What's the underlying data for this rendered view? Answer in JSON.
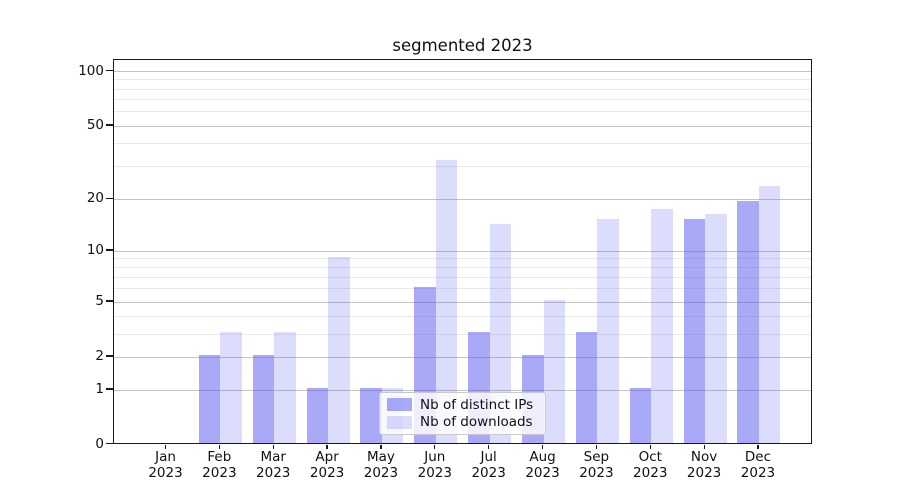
{
  "title": "segmented 2023",
  "legend": {
    "items": [
      {
        "label": "Nb of distinct IPs",
        "series": "distinct_ips"
      },
      {
        "label": "Nb of downloads",
        "series": "downloads"
      }
    ]
  },
  "colors": {
    "bar_distinct_ips": "rgba(99,99,240,0.55)",
    "bar_downloads": "rgba(99,99,240,0.225)",
    "grid_major": "#c4c4c4",
    "grid_minor": "#e9e9e9",
    "spine": "#1a1a1a",
    "text": "#111111"
  },
  "chart_data": {
    "type": "bar",
    "title": "segmented 2023",
    "categories": [
      "Jan 2023",
      "Feb 2023",
      "Mar 2023",
      "Apr 2023",
      "May 2023",
      "Jun 2023",
      "Jul 2023",
      "Aug 2023",
      "Sep 2023",
      "Oct 2023",
      "Nov 2023",
      "Dec 2023"
    ],
    "x_tick_months": [
      "Jan",
      "Feb",
      "Mar",
      "Apr",
      "May",
      "Jun",
      "Jul",
      "Aug",
      "Sep",
      "Oct",
      "Nov",
      "Dec"
    ],
    "x_tick_year": "2023",
    "series": [
      {
        "name": "Nb of distinct IPs",
        "key": "distinct_ips",
        "values": [
          0,
          2,
          2,
          1,
          1,
          6,
          3,
          2,
          3,
          1,
          15,
          19
        ]
      },
      {
        "name": "Nb of downloads",
        "key": "downloads",
        "values": [
          0,
          3,
          3,
          9,
          1,
          32,
          14,
          5,
          15,
          17,
          16,
          23
        ]
      }
    ],
    "xlabel": "",
    "ylabel": "",
    "yscale": "symlog",
    "y_major_ticks": [
      0,
      1,
      2,
      5,
      10,
      20,
      50,
      100
    ],
    "y_minor_ticks": [
      3,
      4,
      6,
      7,
      8,
      9,
      30,
      40,
      60,
      70,
      80,
      90
    ],
    "ylim": [
      0,
      115
    ],
    "grid": "both",
    "legend_position": "lower center"
  }
}
